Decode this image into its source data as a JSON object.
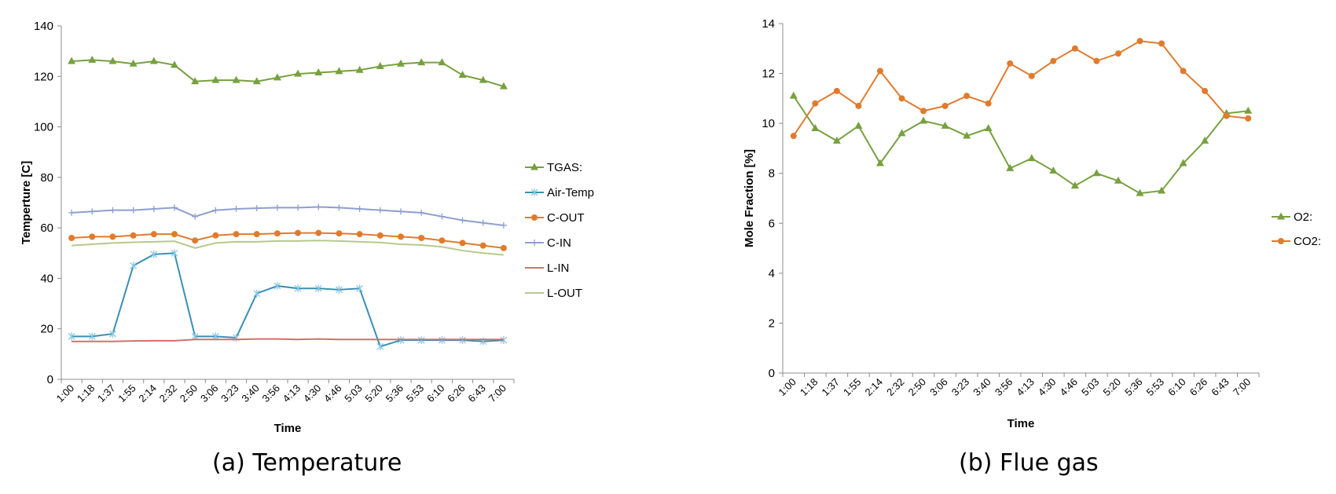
{
  "chart_data": [
    {
      "type": "line",
      "caption": "(a) Temperature",
      "xlabel": "Time",
      "ylabel": "Temperture [C]",
      "ylim": [
        0,
        140
      ],
      "ytick_step": 20,
      "categories": [
        "1:00",
        "1:18",
        "1:37",
        "1:55",
        "2:14",
        "2:32",
        "2:50",
        "3:06",
        "3:23",
        "3:40",
        "3:56",
        "4:13",
        "4:30",
        "4:46",
        "5:03",
        "5:20",
        "5:36",
        "5:53",
        "6:10",
        "6:26",
        "6:43",
        "7:00"
      ],
      "legend_position": "right",
      "series": [
        {
          "name": "TGAS:",
          "color": "#77A040",
          "marker": "triangle",
          "values": [
            126,
            126.5,
            126,
            125,
            126,
            124.5,
            118,
            118.5,
            118.5,
            118,
            119.5,
            121,
            121.5,
            122,
            122.5,
            124,
            125,
            125.5,
            125.5,
            120.5,
            118.5,
            116
          ]
        },
        {
          "name": "Air-Temp",
          "color": "#3A8FB5",
          "marker": "star",
          "values": [
            17,
            17,
            18,
            45,
            49.5,
            50,
            17,
            17,
            16.5,
            34,
            37,
            36,
            36,
            35.5,
            36,
            13,
            15.5,
            15.5,
            15.5,
            15.5,
            15,
            15.5
          ]
        },
        {
          "name": "C-OUT",
          "color": "#E07B2E",
          "marker": "circle",
          "values": [
            56,
            56.5,
            56.5,
            57,
            57.5,
            57.5,
            55,
            57,
            57.5,
            57.5,
            57.8,
            58,
            58,
            57.8,
            57.5,
            57,
            56.5,
            56,
            55,
            54,
            53,
            52
          ]
        },
        {
          "name": "C-IN",
          "color": "#8E9FD0",
          "marker": "plus",
          "values": [
            66,
            66.5,
            67,
            67,
            67.5,
            68,
            64.5,
            67,
            67.5,
            67.8,
            68,
            68,
            68.3,
            68,
            67.5,
            67,
            66.5,
            66,
            64.5,
            63,
            62,
            61
          ]
        },
        {
          "name": "L-IN",
          "color": "#D46F6F",
          "marker": "none",
          "values": [
            15,
            15,
            15,
            15.2,
            15.3,
            15.3,
            15.8,
            15.8,
            15.8,
            16,
            16,
            15.8,
            16,
            15.8,
            15.8,
            15.8,
            15.8,
            15.8,
            15.8,
            15.8,
            15.8,
            15.8
          ]
        },
        {
          "name": "L-OUT",
          "color": "#B8C98A",
          "marker": "none",
          "values": [
            53,
            53.5,
            54,
            54.3,
            54.5,
            54.7,
            52,
            54,
            54.5,
            54.5,
            54.8,
            54.8,
            55,
            54.8,
            54.5,
            54.2,
            53.5,
            53.2,
            52.5,
            51,
            50,
            49.3
          ]
        }
      ]
    },
    {
      "type": "line",
      "caption": "(b) Flue gas",
      "xlabel": "Time",
      "ylabel": "Mole Fraction [%]",
      "ylim": [
        0,
        14
      ],
      "ytick_step": 2,
      "categories": [
        "1:00",
        "1:18",
        "1:37",
        "1:55",
        "2:14",
        "2:32",
        "2:50",
        "3:06",
        "3:23",
        "3:40",
        "3:56",
        "4:13",
        "4:30",
        "4:46",
        "5:03",
        "5:20",
        "5:36",
        "5:53",
        "6:10",
        "6:26",
        "6:43",
        "7:00"
      ],
      "legend_position": "right",
      "series": [
        {
          "name": "O2:",
          "color": "#77A040",
          "marker": "triangle",
          "values": [
            11.1,
            9.8,
            9.3,
            9.9,
            8.4,
            9.6,
            10.1,
            9.9,
            9.5,
            9.8,
            8.2,
            8.6,
            8.1,
            7.5,
            8.0,
            7.7,
            7.2,
            7.3,
            8.4,
            9.3,
            10.4,
            10.5
          ]
        },
        {
          "name": "CO2:",
          "color": "#E07B2E",
          "marker": "circle",
          "values": [
            9.5,
            10.8,
            11.3,
            10.7,
            12.1,
            11.0,
            10.5,
            10.7,
            11.1,
            10.8,
            12.4,
            11.9,
            12.5,
            13.0,
            12.5,
            12.8,
            13.3,
            13.2,
            12.1,
            11.3,
            10.3,
            10.2
          ]
        }
      ]
    }
  ]
}
